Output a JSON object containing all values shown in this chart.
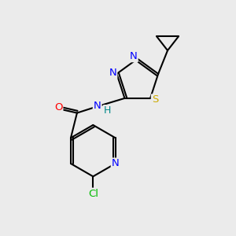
{
  "background_color": "#ebebeb",
  "bond_color": "#000000",
  "atom_colors": {
    "N": "#0000ff",
    "O": "#ff0000",
    "S": "#ccaa00",
    "Cl": "#00bb00",
    "H": "#008888",
    "C": "#000000"
  },
  "figsize": [
    3.0,
    3.0
  ],
  "dpi": 100,
  "lw": 1.5,
  "fontsize": 9.5
}
